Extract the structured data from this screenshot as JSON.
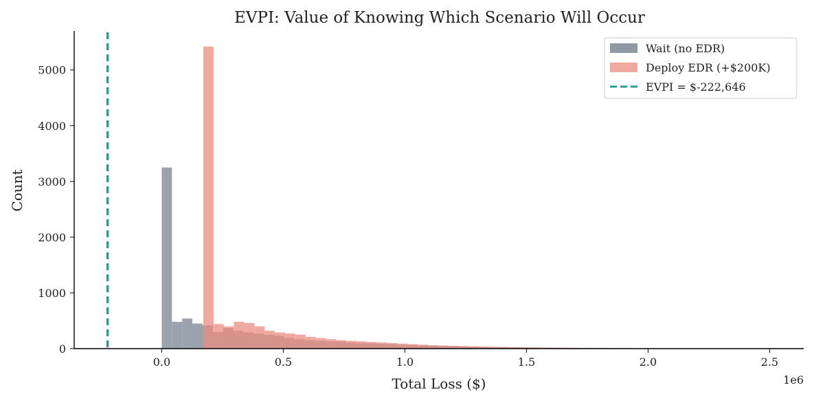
{
  "chart_data": {
    "type": "bar",
    "title": "EVPI: Value of Knowing Which Scenario Will Occur",
    "xlabel": "Total Loss ($)",
    "ylabel": "Count",
    "x_offset_label": "1e6",
    "x_scale": 1000000,
    "xlim": [
      -0.36,
      2.64
    ],
    "ylim": [
      0,
      5700
    ],
    "x_ticks": [
      0.0,
      0.5,
      1.0,
      1.5,
      2.0,
      2.5
    ],
    "x_tick_labels": [
      "0.0",
      "0.5",
      "1.0",
      "1.5",
      "2.0",
      "2.5"
    ],
    "y_ticks": [
      0,
      1000,
      2000,
      3000,
      4000,
      5000
    ],
    "y_tick_labels": [
      "0",
      "1000",
      "2000",
      "3000",
      "4000",
      "5000"
    ],
    "legend_position": "top-right",
    "bin_width": 0.042,
    "series": [
      {
        "name": "Wait (no EDR)",
        "color": "#8f99a4",
        "bin_start": 0.0,
        "values": [
          3250,
          480,
          540,
          450,
          420,
          300,
          370,
          320,
          290,
          270,
          250,
          230,
          190,
          170,
          150,
          140,
          130,
          130,
          110,
          100,
          95,
          90,
          80,
          70,
          65,
          60,
          55,
          50,
          45,
          40,
          35,
          33,
          30,
          28,
          25,
          22,
          20,
          18,
          16,
          15,
          14,
          12,
          11,
          10,
          9,
          8,
          7,
          6,
          5,
          4,
          3,
          3,
          2,
          2,
          1,
          1,
          1,
          1,
          1,
          1
        ]
      },
      {
        "name": "Deploy EDR (+$200K)",
        "color": "#ea8c80",
        "bin_start": 0.171,
        "values": [
          5420,
          440,
          400,
          480,
          460,
          400,
          320,
          290,
          270,
          250,
          210,
          190,
          170,
          150,
          140,
          130,
          120,
          110,
          100,
          90,
          80,
          70,
          60,
          55,
          50,
          45,
          40,
          35,
          30,
          28,
          25,
          22,
          20,
          18,
          15,
          12,
          10,
          9,
          8,
          7,
          6,
          5,
          4,
          3,
          3,
          2,
          2,
          1,
          1,
          1
        ]
      }
    ],
    "reference_line": {
      "label": "EVPI = $-222,646",
      "x": -222646,
      "color": "#23a091",
      "style": "dashed"
    }
  }
}
